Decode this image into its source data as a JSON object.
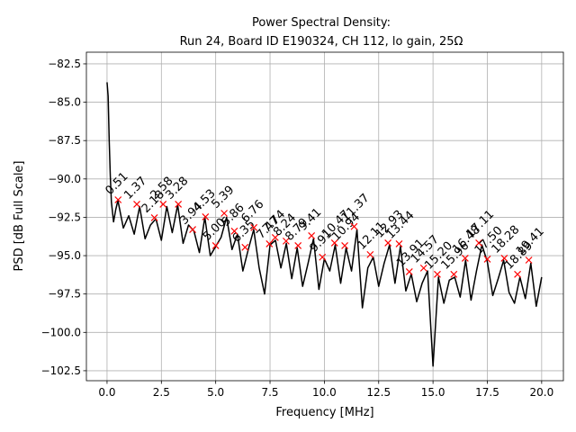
{
  "chart_data": {
    "type": "line",
    "title": [
      "Power Spectral Density:",
      "Run 24, Board ID E190324, CH 112, lo gain, 25Ω"
    ],
    "x_label": "Frequency [MHz]",
    "y_label": "PSD [dB Full Scale]",
    "x": [
      0,
      0.05,
      0.1,
      0.15,
      0.2,
      0.3,
      0.4,
      0.5,
      0.75,
      1.0,
      1.25,
      1.5,
      1.75,
      2.0,
      2.25,
      2.5,
      2.75,
      3.0,
      3.25,
      3.5,
      3.75,
      4.0,
      4.25,
      4.5,
      4.75,
      5.0,
      5.25,
      5.5,
      5.75,
      6.0,
      6.25,
      6.5,
      6.75,
      7.0,
      7.25,
      7.5,
      7.75,
      8.0,
      8.25,
      8.5,
      8.75,
      9.0,
      9.25,
      9.5,
      9.75,
      10.0,
      10.25,
      10.5,
      10.75,
      11.0,
      11.25,
      11.5,
      11.75,
      12.0,
      12.25,
      12.5,
      12.75,
      13.0,
      13.25,
      13.5,
      13.75,
      14.0,
      14.25,
      14.5,
      14.75,
      15.0,
      15.25,
      15.5,
      15.75,
      16.0,
      16.25,
      16.5,
      16.75,
      17.0,
      17.25,
      17.5,
      17.75,
      18.0,
      18.25,
      18.5,
      18.75,
      19.0,
      19.25,
      19.5,
      19.75,
      20.0
    ],
    "series": [
      {
        "color": "#000000",
        "values": [
          -83.7,
          -84.6,
          -87.5,
          -89.8,
          -91.5,
          -92.8,
          -92.0,
          -91.4,
          -93.2,
          -92.4,
          -93.6,
          -91.8,
          -93.9,
          -93.0,
          -92.6,
          -94.0,
          -91.8,
          -93.5,
          -91.7,
          -94.2,
          -93.0,
          -93.4,
          -94.8,
          -92.5,
          -95.0,
          -94.4,
          -93.8,
          -92.5,
          -94.6,
          -93.6,
          -96.0,
          -94.6,
          -93.3,
          -95.8,
          -97.5,
          -94.3,
          -94.0,
          -95.8,
          -94.2,
          -96.5,
          -94.5,
          -97.0,
          -95.5,
          -93.9,
          -97.2,
          -95.2,
          -96.0,
          -94.3,
          -96.8,
          -94.5,
          -96.0,
          -93.3,
          -98.4,
          -95.8,
          -95.1,
          -97.0,
          -95.5,
          -94.3,
          -96.8,
          -94.4,
          -97.3,
          -96.2,
          -98.0,
          -96.8,
          -96.0,
          -102.2,
          -96.4,
          -98.1,
          -96.6,
          -96.4,
          -97.7,
          -95.3,
          -97.9,
          -96.0,
          -94.3,
          -95.4,
          -97.6,
          -96.5,
          -95.3,
          -97.4,
          -98.1,
          -96.4,
          -97.8,
          -95.5,
          -98.3,
          -96.4
        ]
      }
    ],
    "peaks": {
      "color": "#ff0000",
      "x": [
        0.51,
        1.37,
        2.18,
        2.58,
        3.28,
        3.94,
        4.53,
        5.0,
        5.39,
        5.86,
        6.35,
        6.76,
        7.47,
        7.74,
        8.24,
        8.79,
        9.41,
        9.91,
        10.47,
        10.94,
        11.37,
        12.11,
        12.93,
        13.44,
        13.91,
        14.57,
        15.2,
        15.96,
        16.48,
        17.11,
        17.5,
        18.28,
        18.89,
        19.41
      ],
      "values": [
        -91.36,
        -91.65,
        -92.53,
        -91.65,
        -91.65,
        -93.3,
        -92.47,
        -94.35,
        -92.24,
        -93.4,
        -94.46,
        -93.17,
        -94.23,
        -93.82,
        -94.05,
        -94.35,
        -93.7,
        -95.1,
        -94.17,
        -94.35,
        -93.1,
        -94.93,
        -94.17,
        -94.23,
        -96.05,
        -95.81,
        -96.22,
        -96.22,
        -95.17,
        -94.17,
        -95.23,
        -95.17,
        -96.22,
        -95.29
      ],
      "labels": [
        "0.51",
        "1.37",
        "2.18",
        "2.58",
        "3.28",
        "3.94",
        "4.53",
        "5.00",
        "5.39",
        "5.86",
        "6.35",
        "6.76",
        "7.47",
        "7.74",
        "8.24",
        "8.79",
        "9.41",
        "9.91",
        "10.47",
        "10.94",
        "11.37",
        "12.11",
        "12.93",
        "13.44",
        "13.91",
        "14.57",
        "15.20",
        "15.96",
        "16.48",
        "17.11",
        "17.50",
        "18.28",
        "18.89",
        "19.41"
      ]
    },
    "xlim": [
      -0.95,
      21.0
    ],
    "ylim": [
      -103.15,
      -81.74
    ],
    "xticks": [
      {
        "value": 0,
        "label": "0.0"
      },
      {
        "value": 2.5,
        "label": "2.5"
      },
      {
        "value": 5,
        "label": "5.0"
      },
      {
        "value": 7.5,
        "label": "7.5"
      },
      {
        "value": 10,
        "label": "10.0"
      },
      {
        "value": 12.5,
        "label": "12.5"
      },
      {
        "value": 15,
        "label": "15.0"
      },
      {
        "value": 17.5,
        "label": "17.5"
      },
      {
        "value": 20,
        "label": "20.0"
      }
    ],
    "yticks": [
      {
        "value": -82.5,
        "label": "−82.5"
      },
      {
        "value": -85,
        "label": "−85.0"
      },
      {
        "value": -87.5,
        "label": "−87.5"
      },
      {
        "value": -90,
        "label": "−90.0"
      },
      {
        "value": -92.5,
        "label": "−92.5"
      },
      {
        "value": -95,
        "label": "−95.0"
      },
      {
        "value": -97.5,
        "label": "−97.5"
      },
      {
        "value": -100,
        "label": "−100.0"
      },
      {
        "value": -102.5,
        "label": "−102.5"
      }
    ],
    "grid": true
  }
}
